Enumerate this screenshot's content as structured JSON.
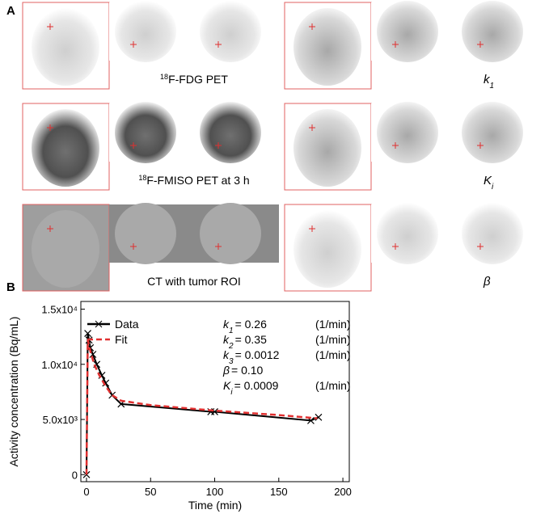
{
  "panel_a": {
    "label": "A",
    "rows": [
      {
        "left_label": {
          "sup": "18",
          "text": "F-FDG PET"
        },
        "right_label": {
          "var": "k",
          "sub": "1"
        }
      },
      {
        "left_label": {
          "sup": "18",
          "text": "F-FMISO PET at 3 h"
        },
        "right_label": {
          "var": "K",
          "sub": "i"
        }
      },
      {
        "left_label": {
          "text": "CT with tumor ROI"
        },
        "right_label": {
          "var": "β"
        }
      }
    ]
  },
  "chart_data": {
    "type": "line",
    "label": "B",
    "xlabel": "Time (min)",
    "ylabel": "Activity concentration (Bq/mL)",
    "xlim": [
      -4.4,
      205
    ],
    "ylim": [
      -640,
      15700
    ],
    "xticks": [
      0,
      50,
      100,
      150,
      200
    ],
    "yticks": [
      0,
      {
        "value": 5000,
        "label": "5.0x10³"
      },
      {
        "value": 10000,
        "label": "1.0x10⁴"
      },
      {
        "value": 15000,
        "label": "1.5x10⁴"
      }
    ],
    "legend": "upper left",
    "series": [
      {
        "name": "Data",
        "color": "#000000",
        "x": [
          0,
          1,
          2,
          3,
          5,
          8,
          12,
          15,
          20,
          27,
          97,
          100,
          175,
          181
        ],
        "values": [
          0,
          12800,
          12200,
          11500,
          10900,
          10000,
          9000,
          8300,
          7200,
          6400,
          5700,
          5700,
          4900,
          5200
        ]
      },
      {
        "name": "Fit",
        "color": "#e03030",
        "x": [
          0,
          1,
          3,
          6,
          10,
          15,
          20,
          27,
          50,
          100,
          150,
          180
        ],
        "values": [
          0,
          12200,
          11200,
          10000,
          9000,
          8000,
          7200,
          6700,
          6300,
          5800,
          5400,
          5100
        ]
      }
    ],
    "annotations": [
      {
        "var": "k",
        "sub": "1",
        "eq": "= 0.26",
        "unit": "(1/min)"
      },
      {
        "var": "k",
        "sub": "2",
        "eq": "= 0.35",
        "unit": "(1/min)"
      },
      {
        "var": "k",
        "sub": "3",
        "eq": "= 0.0012",
        "unit": "(1/min)"
      },
      {
        "var": "β",
        "eq": "= 0.10"
      },
      {
        "var": "K",
        "sub": "i",
        "eq": "= 0.0009",
        "unit": "(1/min)"
      }
    ]
  }
}
